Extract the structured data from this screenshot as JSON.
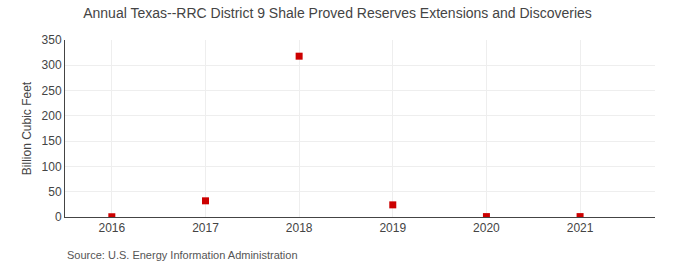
{
  "chart_data": {
    "type": "scatter",
    "title": "Annual Texas--RRC District 9 Shale Proved Reserves Extensions and Discoveries",
    "ylabel": "Billion Cubic Feet",
    "annotations": [
      "Source: U.S. Energy Information Administration"
    ],
    "x": [
      2016,
      2017,
      2018,
      2019,
      2020,
      2021
    ],
    "values": [
      0.5,
      32.0,
      318.0,
      24.0,
      0.8,
      0.8
    ],
    "color": "#cc0000",
    "marker": "square",
    "xlim": [
      2015.5,
      2021.8
    ],
    "xticks": [
      2016,
      2017,
      2018,
      2019,
      2020,
      2021
    ],
    "ylim": [
      0,
      350
    ],
    "yticks": [
      0,
      50,
      100,
      150,
      200,
      250,
      300,
      350
    ],
    "grid": true
  }
}
